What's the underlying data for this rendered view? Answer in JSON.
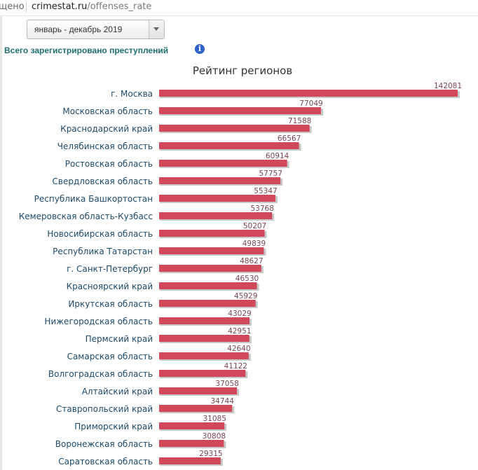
{
  "browser": {
    "address_prefix": "щено",
    "url_host": "crimestat.ru",
    "url_path": "/offenses_rate"
  },
  "filter": {
    "period": "январь - декабрь 2019"
  },
  "heading": {
    "total_label": "Всего зарегистрировано преступлений",
    "info_icon": "i"
  },
  "colors": {
    "bar": "#d0485a",
    "bar_shadow": "#c8c8c8",
    "label": "#1c4a6b",
    "heading": "#1f6f73"
  },
  "chart_data": {
    "type": "bar",
    "orientation": "horizontal",
    "title": "Рейтинг регионов",
    "xlabel": "",
    "ylabel": "",
    "xlim": [
      0,
      142081
    ],
    "categories": [
      "г. Москва",
      "Московская область",
      "Краснодарский край",
      "Челябинская область",
      "Ростовская область",
      "Свердловская область",
      "Республика Башкортостан",
      "Кемеровская область-Кузбасс",
      "Новосибирская область",
      "Республика Татарстан",
      "г. Санкт-Петербург",
      "Красноярский край",
      "Иркутская область",
      "Нижегородская область",
      "Пермский край",
      "Самарская область",
      "Волгоградская область",
      "Алтайский край",
      "Ставропольский край",
      "Приморский край",
      "Воронежская область",
      "Саратовская область"
    ],
    "values": [
      142081,
      77049,
      71588,
      66567,
      60914,
      57757,
      55347,
      53768,
      50207,
      49839,
      48627,
      46530,
      45929,
      43029,
      42951,
      42640,
      41122,
      37058,
      34744,
      31085,
      30808,
      29315
    ],
    "value_labels": [
      "142081",
      "77049",
      "71588",
      "66567",
      "60914",
      "57757",
      "55347",
      "53768",
      "50207",
      "49839",
      "48627",
      "46530",
      "45929",
      "43029",
      "42951",
      "42640",
      "41122",
      "37058",
      "34744",
      "31085",
      "30808",
      "29315"
    ],
    "grid": false,
    "legend": "none"
  }
}
